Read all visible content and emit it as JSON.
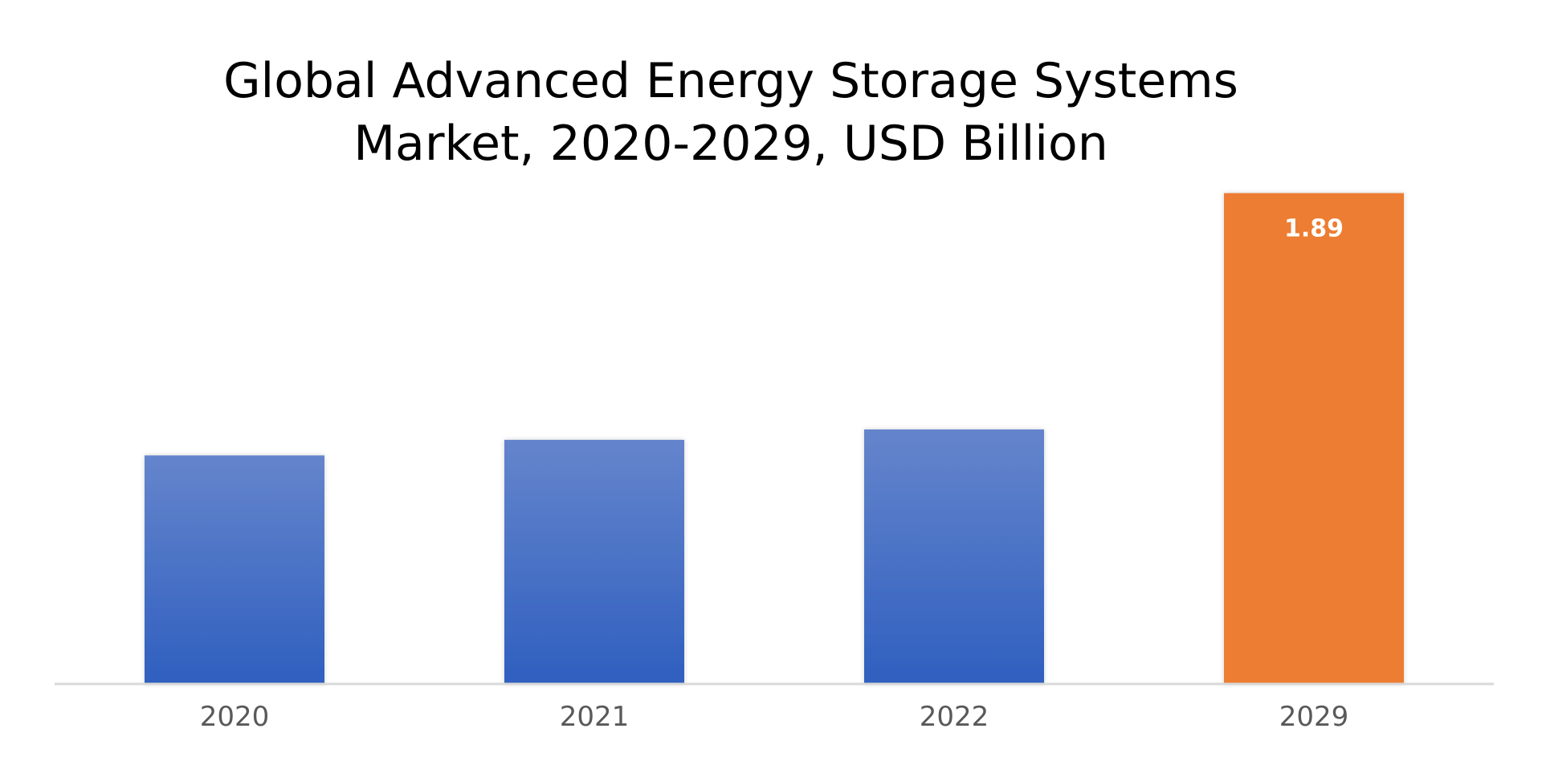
{
  "chart_data": {
    "type": "bar",
    "title_lines": [
      "Global Advanced Energy Storage Systems",
      "Market, 2020-2029, USD Billion"
    ],
    "categories": [
      "2020",
      "2021",
      "2022",
      "2029"
    ],
    "values": [
      0.88,
      0.94,
      0.98,
      1.89
    ],
    "data_labels": [
      "",
      "",
      "",
      "1.89"
    ],
    "bar_colors": [
      "#4472c4",
      "#4472c4",
      "#4472c4",
      "#ed7d31"
    ],
    "gradient_top_color": "#6585cc",
    "gradient_bottom_color": "#2f5fbf",
    "axis_color": "#d9d9d9",
    "xlabel": "",
    "ylabel": "",
    "ylim": [
      0,
      2.0
    ],
    "grid": false,
    "legend": "none"
  }
}
